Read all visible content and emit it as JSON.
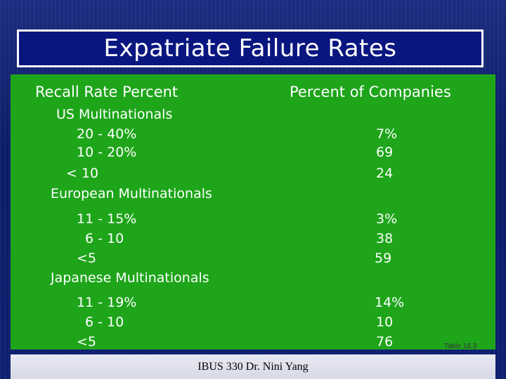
{
  "slide": {
    "title": "Expatriate Failure Rates",
    "headers": {
      "left": "Recall Rate Percent",
      "right": "Percent of Companies"
    },
    "groups": [
      {
        "name": "US Multinationals",
        "rows": [
          {
            "range": "20 - 40%",
            "percent": "7%"
          },
          {
            "range": "10 - 20%",
            "percent": "69"
          },
          {
            "range": "< 10",
            "percent": "24"
          }
        ]
      },
      {
        "name": "European Multinationals",
        "rows": [
          {
            "range": "11 - 15%",
            "percent": "3%"
          },
          {
            "range": "6 - 10",
            "percent": "38"
          },
          {
            "range": "<5",
            "percent": "59"
          }
        ]
      },
      {
        "name": "Japanese Multinationals",
        "rows": [
          {
            "range": "11 - 19%",
            "percent": "14%"
          },
          {
            "range": "6 - 10",
            "percent": "10"
          },
          {
            "range": "<5",
            "percent": "76"
          }
        ]
      }
    ],
    "table_ref": "Table 18.3",
    "footer": "IBUS 330 Dr. Nini Yang"
  },
  "colors": {
    "background": "#0a1f6b",
    "panel": "#1ea51a",
    "title_box": "#0a1680",
    "text": "#ffffff"
  }
}
